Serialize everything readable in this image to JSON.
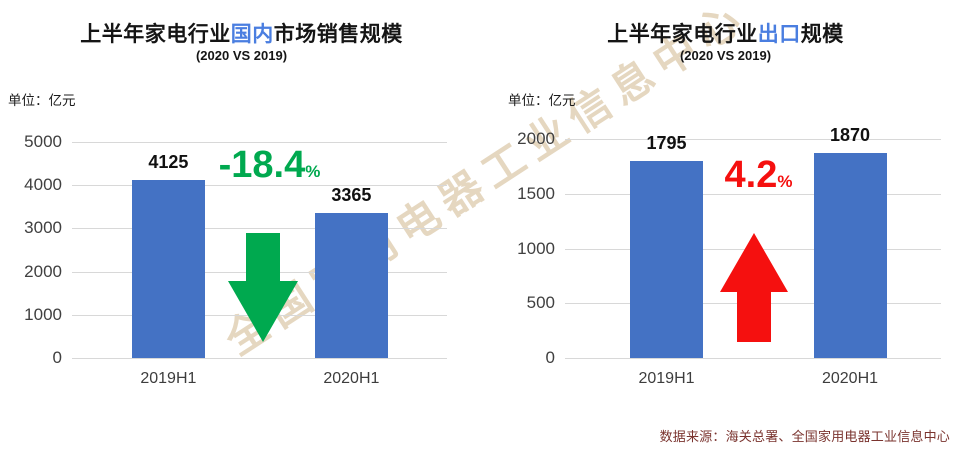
{
  "watermark": {
    "text": "全国家用电器工业信息中心",
    "color": "rgba(193,160,104,0.42)"
  },
  "source": {
    "label": "数据来源：海关总署、全国家用电器工业信息中心",
    "color": "#7A332E"
  },
  "chart_data": [
    {
      "type": "bar",
      "title_parts": [
        "上半年家电行业",
        "国内",
        "市场销售规模"
      ],
      "title_highlight_color": "#4A7EE0",
      "subtitle": "(2020 VS 2019)",
      "unit_label": "单位：亿元",
      "categories": [
        "2019H1",
        "2020H1"
      ],
      "values": [
        4125,
        3365
      ],
      "ylim": [
        0,
        5000
      ],
      "yticks": [
        0,
        1000,
        2000,
        3000,
        4000,
        5000
      ],
      "grid": true,
      "legend": "none",
      "bar_color": "#4472C4",
      "annotation": {
        "value": "-18.4",
        "suffix": "%",
        "change_percent": -18.4,
        "direction": "down",
        "color": "#00A94F"
      }
    },
    {
      "type": "bar",
      "title_parts": [
        "上半年家电行业",
        "出口",
        "规模"
      ],
      "title_highlight_color": "#4A7EE0",
      "subtitle": "(2020 VS 2019)",
      "unit_label": "单位：亿元",
      "categories": [
        "2019H1",
        "2020H1"
      ],
      "values": [
        1795,
        1870
      ],
      "ylim": [
        0,
        2000
      ],
      "yticks": [
        0,
        500,
        1000,
        1500,
        2000
      ],
      "grid": true,
      "legend": "none",
      "bar_color": "#4472C4",
      "annotation": {
        "value": "4.2",
        "suffix": "%",
        "change_percent": 4.2,
        "direction": "up",
        "color": "#F5100F"
      }
    }
  ]
}
